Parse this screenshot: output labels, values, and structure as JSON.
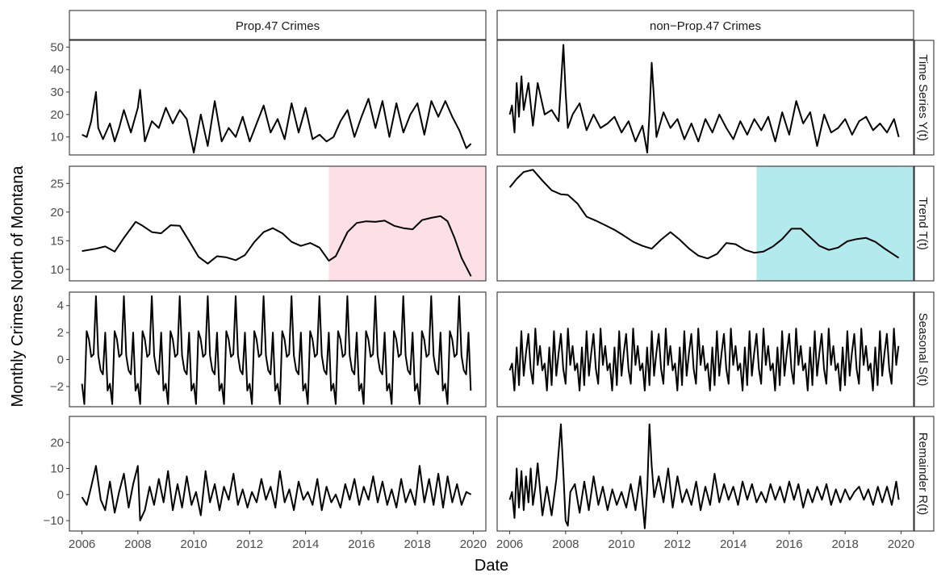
{
  "chart_data": {
    "type": "line",
    "facets": {
      "columns": [
        "Prop.47 Crimes",
        "non−Prop.47 Crimes"
      ],
      "rows": [
        "Time Series Y(t)",
        "Trend T(t)",
        "Seasonal S(t)",
        "Remainder R(t)"
      ]
    },
    "xlabel": "Date",
    "ylabel": "Monthly Crimes North of Montana",
    "x_range": [
      2006,
      2020
    ],
    "x_ticks": [
      2006,
      2008,
      2010,
      2012,
      2014,
      2016,
      2018,
      2020
    ],
    "rows": [
      {
        "name": "Time Series Y(t)",
        "y_range": [
          2,
          53
        ],
        "y_ticks": [
          10,
          20,
          30,
          40,
          50
        ],
        "series": [
          {
            "x": [
              2006.0,
              2006.17,
              2006.33,
              2006.5,
              2006.58,
              2006.75,
              2007.0,
              2007.17,
              2007.33,
              2007.5,
              2007.75,
              2008.0,
              2008.08,
              2008.25,
              2008.5,
              2008.75,
              2009.0,
              2009.25,
              2009.5,
              2009.75,
              2010.0,
              2010.25,
              2010.5,
              2010.75,
              2011.0,
              2011.25,
              2011.5,
              2011.75,
              2012.0,
              2012.25,
              2012.5,
              2012.75,
              2013.0,
              2013.25,
              2013.5,
              2013.75,
              2014.0,
              2014.25,
              2014.5,
              2014.75,
              2015.0,
              2015.25,
              2015.5,
              2015.75,
              2016.0,
              2016.25,
              2016.5,
              2016.75,
              2017.0,
              2017.25,
              2017.5,
              2017.75,
              2018.0,
              2018.25,
              2018.5,
              2018.75,
              2019.0,
              2019.25,
              2019.5,
              2019.75,
              2019.92
            ],
            "y": [
              11,
              10,
              17,
              30,
              14,
              9,
              16,
              8,
              14,
              22,
              12,
              23,
              31,
              8,
              17,
              14,
              23,
              16,
              22,
              18,
              3,
              20,
              6,
              26,
              8,
              14,
              10,
              19,
              8,
              16,
              24,
              12,
              18,
              9,
              25,
              12,
              23,
              9,
              11,
              8,
              10,
              17,
              22,
              10,
              19,
              27,
              14,
              26,
              10,
              25,
              12,
              20,
              25,
              11,
              26,
              19,
              26,
              19,
              13,
              5,
              7
            ]
          },
          {
            "x": [
              2006.0,
              2006.08,
              2006.17,
              2006.25,
              2006.33,
              2006.42,
              2006.5,
              2006.67,
              2006.83,
              2007.0,
              2007.25,
              2007.5,
              2007.75,
              2007.92,
              2008.0,
              2008.08,
              2008.25,
              2008.5,
              2008.75,
              2009.0,
              2009.25,
              2009.5,
              2009.75,
              2010.0,
              2010.25,
              2010.5,
              2010.75,
              2010.92,
              2011.0,
              2011.08,
              2011.25,
              2011.5,
              2011.75,
              2012.0,
              2012.25,
              2012.5,
              2012.75,
              2013.0,
              2013.25,
              2013.5,
              2013.75,
              2014.0,
              2014.25,
              2014.5,
              2014.75,
              2015.0,
              2015.25,
              2015.5,
              2015.75,
              2016.0,
              2016.25,
              2016.5,
              2016.75,
              2017.0,
              2017.25,
              2017.5,
              2017.75,
              2018.0,
              2018.25,
              2018.5,
              2018.75,
              2019.0,
              2019.25,
              2019.5,
              2019.75,
              2019.92
            ],
            "y": [
              20,
              24,
              12,
              34,
              19,
              37,
              22,
              34,
              15,
              34,
              20,
              22,
              17,
              51,
              30,
              14,
              20,
              25,
              13,
              20,
              14,
              16,
              19,
              12,
              17,
              8,
              15,
              3,
              20,
              43,
              10,
              21,
              14,
              18,
              9,
              16,
              8,
              18,
              12,
              20,
              14,
              9,
              17,
              11,
              18,
              13,
              19,
              8,
              21,
              11,
              26,
              16,
              21,
              6,
              20,
              12,
              14,
              18,
              11,
              17,
              19,
              13,
              16,
              12,
              18,
              10
            ]
          }
        ]
      },
      {
        "name": "Trend T(t)",
        "y_range": [
          8,
          28
        ],
        "y_ticks": [
          10,
          15,
          20,
          25
        ],
        "highlights": [
          {
            "x_start": 2014.83,
            "x_end": 2020.0,
            "color": "#fde0e5"
          },
          {
            "x_start": 2014.83,
            "x_end": 2020.0,
            "color": "#b2eaee"
          }
        ],
        "series": [
          {
            "x": [
              2006.0,
              2006.5,
              2006.83,
              2007.17,
              2007.5,
              2007.92,
              2008.17,
              2008.5,
              2008.83,
              2009.17,
              2009.5,
              2009.83,
              2010.17,
              2010.5,
              2010.83,
              2011.17,
              2011.5,
              2011.83,
              2012.17,
              2012.5,
              2012.83,
              2013.17,
              2013.5,
              2013.83,
              2014.17,
              2014.5,
              2014.83,
              2015.08,
              2015.5,
              2015.83,
              2016.17,
              2016.5,
              2016.83,
              2017.17,
              2017.5,
              2017.83,
              2018.17,
              2018.5,
              2018.83,
              2019.08,
              2019.33,
              2019.58,
              2019.92
            ],
            "y": [
              13.2,
              13.6,
              14.0,
              13.1,
              15.5,
              18.3,
              17.6,
              16.5,
              16.3,
              17.7,
              17.6,
              15.0,
              12.2,
              11.0,
              12.3,
              12.1,
              11.6,
              12.5,
              14.8,
              16.5,
              17.2,
              16.3,
              14.8,
              14.1,
              14.6,
              13.8,
              11.5,
              12.3,
              16.5,
              18.1,
              18.4,
              18.3,
              18.5,
              17.6,
              17.2,
              17.0,
              18.6,
              19.0,
              19.3,
              18.4,
              15.5,
              12.0,
              8.8
            ]
          },
          {
            "x": [
              2006.0,
              2006.25,
              2006.5,
              2006.83,
              2007.17,
              2007.5,
              2007.83,
              2008.08,
              2008.42,
              2008.75,
              2009.08,
              2009.42,
              2009.75,
              2010.08,
              2010.42,
              2010.75,
              2011.08,
              2011.42,
              2011.75,
              2012.08,
              2012.42,
              2012.75,
              2013.08,
              2013.42,
              2013.75,
              2014.08,
              2014.42,
              2014.75,
              2015.08,
              2015.42,
              2015.75,
              2016.08,
              2016.42,
              2016.75,
              2017.08,
              2017.42,
              2017.75,
              2018.08,
              2018.42,
              2018.75,
              2019.08,
              2019.42,
              2019.92
            ],
            "y": [
              24.3,
              25.8,
              27.0,
              27.4,
              25.5,
              23.8,
              23.1,
              23.0,
              21.5,
              19.2,
              18.5,
              17.7,
              16.9,
              15.9,
              14.8,
              14.1,
              13.6,
              15.2,
              16.5,
              15.2,
              13.6,
              12.4,
              11.9,
              12.7,
              14.6,
              14.4,
              13.4,
              12.9,
              13.1,
              14.0,
              15.3,
              17.1,
              17.1,
              15.6,
              14.1,
              13.4,
              13.8,
              14.9,
              15.3,
              15.5,
              14.8,
              13.6,
              12.0
            ]
          }
        ]
      },
      {
        "name": "Seasonal S(t)",
        "y_range": [
          -3.5,
          5.0
        ],
        "y_ticks": [
          -2,
          0,
          2,
          4
        ],
        "series": [
          {
            "pattern": [
              -1.8,
              -3.3,
              2.1,
              1.5,
              0.2,
              0.4,
              4.7,
              0.3,
              -0.8,
              -1.1,
              2.0,
              -2.3
            ],
            "start": 2006.0,
            "step": 0.0833,
            "count": 168
          },
          {
            "pattern": [
              -0.8,
              -0.3,
              -2.3,
              0.9,
              -1.9,
              2.1,
              -1.2,
              0.5,
              1.9,
              -0.7,
              -1.8,
              2.3,
              -0.4,
              1.0
            ],
            "start": 2006.0,
            "step": 0.0833,
            "count": 168
          }
        ]
      },
      {
        "name": "Remainder R(t)",
        "y_range": [
          -14,
          30
        ],
        "y_ticks": [
          -10,
          0,
          10,
          20
        ],
        "series": [
          {
            "x": [
              2006.0,
              2006.17,
              2006.33,
              2006.5,
              2006.67,
              2006.83,
              2007.0,
              2007.17,
              2007.33,
              2007.5,
              2007.67,
              2007.83,
              2008.0,
              2008.08,
              2008.25,
              2008.42,
              2008.58,
              2008.75,
              2008.92,
              2009.08,
              2009.25,
              2009.42,
              2009.58,
              2009.75,
              2009.92,
              2010.08,
              2010.25,
              2010.42,
              2010.58,
              2010.75,
              2010.92,
              2011.08,
              2011.25,
              2011.42,
              2011.58,
              2011.75,
              2011.92,
              2012.08,
              2012.25,
              2012.42,
              2012.58,
              2012.75,
              2012.92,
              2013.08,
              2013.25,
              2013.42,
              2013.58,
              2013.75,
              2013.92,
              2014.08,
              2014.25,
              2014.42,
              2014.58,
              2014.75,
              2014.92,
              2015.08,
              2015.25,
              2015.42,
              2015.58,
              2015.75,
              2015.92,
              2016.08,
              2016.25,
              2016.42,
              2016.58,
              2016.75,
              2016.92,
              2017.08,
              2017.25,
              2017.42,
              2017.58,
              2017.75,
              2017.92,
              2018.08,
              2018.25,
              2018.42,
              2018.58,
              2018.75,
              2018.92,
              2019.08,
              2019.25,
              2019.42,
              2019.58,
              2019.75,
              2019.92
            ],
            "y": [
              -1,
              -4,
              3,
              11,
              -2,
              -6,
              5,
              -7,
              1,
              8,
              -5,
              4,
              11,
              -10,
              -6,
              3,
              -4,
              6,
              -3,
              9,
              -6,
              4,
              -5,
              7,
              -4,
              1,
              -8,
              9,
              -3,
              4,
              -6,
              3,
              -2,
              8,
              -4,
              2,
              -5,
              1,
              -3,
              6,
              -2,
              3,
              -5,
              9,
              -3,
              2,
              -6,
              5,
              -2,
              1,
              -4,
              6,
              -6,
              3,
              -3,
              0,
              -5,
              4,
              -2,
              6,
              -4,
              3,
              -2,
              7,
              -3,
              5,
              -4,
              2,
              -5,
              6,
              -3,
              2,
              -4,
              11,
              -3,
              6,
              -4,
              8,
              -5,
              7,
              -3,
              4,
              -4,
              1,
              0
            ]
          },
          {
            "x": [
              2006.0,
              2006.08,
              2006.17,
              2006.25,
              2006.33,
              2006.42,
              2006.5,
              2006.58,
              2006.67,
              2006.75,
              2006.83,
              2006.92,
              2007.0,
              2007.17,
              2007.33,
              2007.5,
              2007.67,
              2007.83,
              2007.92,
              2008.0,
              2008.08,
              2008.17,
              2008.33,
              2008.5,
              2008.67,
              2008.83,
              2009.0,
              2009.17,
              2009.33,
              2009.5,
              2009.67,
              2009.83,
              2010.0,
              2010.17,
              2010.33,
              2010.5,
              2010.67,
              2010.83,
              2010.92,
              2011.0,
              2011.08,
              2011.17,
              2011.33,
              2011.5,
              2011.67,
              2011.83,
              2012.0,
              2012.17,
              2012.33,
              2012.5,
              2012.67,
              2012.83,
              2013.0,
              2013.17,
              2013.33,
              2013.5,
              2013.67,
              2013.83,
              2014.0,
              2014.17,
              2014.33,
              2014.5,
              2014.67,
              2014.83,
              2015.0,
              2015.17,
              2015.33,
              2015.5,
              2015.67,
              2015.83,
              2016.0,
              2016.17,
              2016.33,
              2016.5,
              2016.67,
              2016.83,
              2017.0,
              2017.17,
              2017.33,
              2017.5,
              2017.67,
              2017.83,
              2018.0,
              2018.17,
              2018.33,
              2018.5,
              2018.67,
              2018.83,
              2019.0,
              2019.17,
              2019.33,
              2019.5,
              2019.67,
              2019.83,
              2019.92
            ],
            "y": [
              -2,
              1,
              -9,
              10,
              -5,
              9,
              -6,
              7,
              -3,
              10,
              -4,
              3,
              12,
              -8,
              3,
              -8,
              6,
              27,
              8,
              -10,
              -12,
              1,
              4,
              -7,
              5,
              -6,
              7,
              -4,
              3,
              -6,
              2,
              -4,
              1,
              -5,
              4,
              -6,
              7,
              -13,
              2,
              27,
              11,
              -1,
              7,
              -3,
              10,
              -5,
              7,
              -3,
              2,
              -4,
              5,
              -6,
              3,
              -4,
              8,
              -3,
              4,
              -2,
              3,
              -4,
              5,
              -2,
              4,
              -3,
              1,
              -3,
              4,
              -2,
              3,
              -3,
              5,
              -2,
              4,
              -5,
              2,
              -3,
              3,
              -2,
              4,
              -4,
              2,
              -3,
              2,
              -2,
              1,
              3,
              -2,
              2,
              -4,
              3,
              -3,
              3,
              -4,
              5,
              -2
            ]
          }
        ]
      }
    ]
  }
}
